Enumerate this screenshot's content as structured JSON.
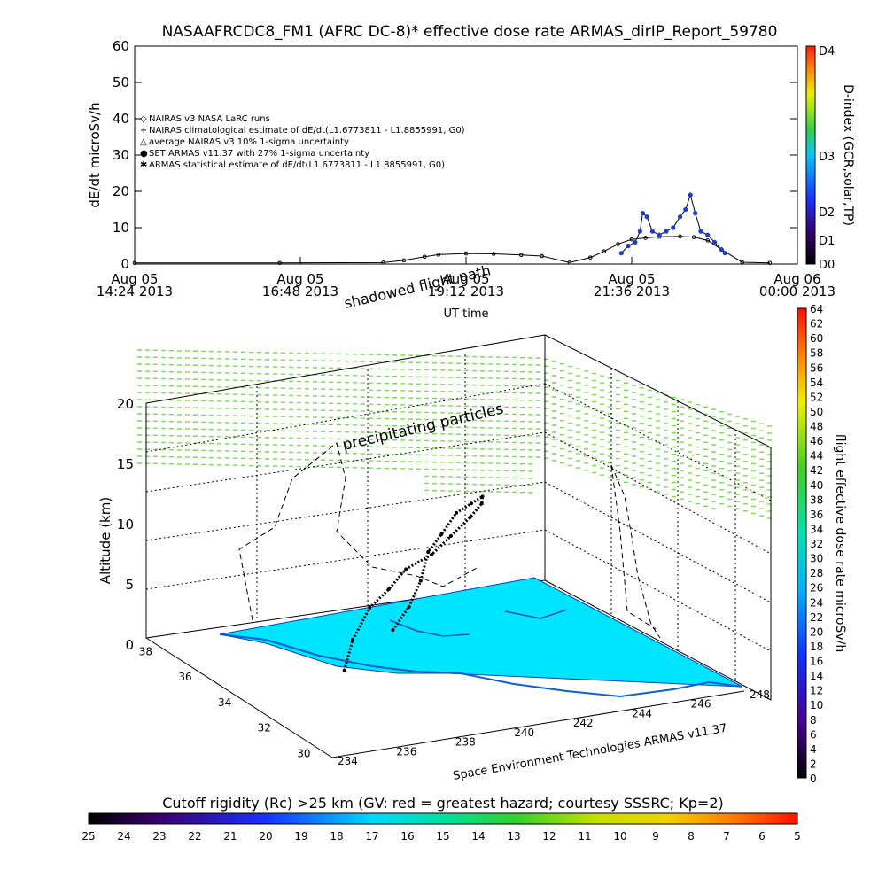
{
  "chart_data": [
    {
      "type": "scatter",
      "title": "NASAAFRCDC8_FM1 (AFRC DC-8)* effective dose rate ARMAS_dirIP_Report_59780",
      "ylabel": "dE/dt microSv/h",
      "xlabel": "UT time",
      "ylim": [
        0,
        60
      ],
      "yticks": [
        "0",
        "10",
        "20",
        "30",
        "40",
        "50",
        "60"
      ],
      "xticks": [
        {
          "line1": "Aug 05",
          "line2": "14:24 2013"
        },
        {
          "line1": "Aug 05",
          "line2": "16:48 2013"
        },
        {
          "line1": "Aug 05",
          "line2": "19:12 2013"
        },
        {
          "line1": "Aug 05",
          "line2": "21:36 2013"
        },
        {
          "line1": "Aug 06",
          "line2": "00:00 2013"
        }
      ],
      "xlim_hours": [
        14.4,
        24.0
      ],
      "legend": [
        {
          "symbol": "◇",
          "label": "NAIRAS v3 NASA LaRC runs"
        },
        {
          "symbol": "+",
          "label": "NAIRAS climatological estimate of dE/dt(L1.6773811 - L1.8855991, G0)"
        },
        {
          "symbol": "△",
          "label": "average NAIRAS v3 10% 1-sigma uncertainty"
        },
        {
          "symbol": "●",
          "label": "SET ARMAS v11.37 with 27% 1-sigma uncertainty",
          "color": "#1f3fbf"
        },
        {
          "symbol": "✱",
          "label": "ARMAS statistical estimate of dE/dt(L1.6773811 - L1.8855991, G0)"
        }
      ],
      "nairas_series": [
        [
          14.4,
          0.3
        ],
        [
          16.5,
          0.3
        ],
        [
          18.0,
          0.4
        ],
        [
          18.3,
          1.0
        ],
        [
          18.6,
          2.0
        ],
        [
          18.8,
          2.6
        ],
        [
          19.2,
          2.9
        ],
        [
          19.6,
          2.8
        ],
        [
          20.0,
          2.5
        ],
        [
          20.3,
          2.2
        ],
        [
          20.7,
          0.4
        ],
        [
          21.0,
          1.8
        ],
        [
          21.2,
          3.5
        ],
        [
          21.4,
          5.5
        ],
        [
          21.6,
          6.8
        ],
        [
          21.8,
          7.2
        ],
        [
          22.0,
          7.5
        ],
        [
          22.3,
          7.6
        ],
        [
          22.5,
          7.4
        ],
        [
          22.7,
          6.5
        ],
        [
          22.9,
          4.0
        ],
        [
          23.2,
          0.5
        ],
        [
          23.6,
          0.3
        ]
      ],
      "armas_series": [
        [
          21.45,
          3
        ],
        [
          21.55,
          5
        ],
        [
          21.65,
          6
        ],
        [
          21.72,
          9
        ],
        [
          21.76,
          14
        ],
        [
          21.82,
          13
        ],
        [
          21.9,
          9
        ],
        [
          22.0,
          8
        ],
        [
          22.1,
          9
        ],
        [
          22.2,
          10
        ],
        [
          22.3,
          13
        ],
        [
          22.38,
          15
        ],
        [
          22.45,
          19
        ],
        [
          22.52,
          14
        ],
        [
          22.6,
          9
        ],
        [
          22.7,
          8
        ],
        [
          22.8,
          6
        ],
        [
          22.9,
          4
        ],
        [
          22.95,
          3
        ]
      ],
      "d_index_colorbar": {
        "label": "D-index (GCR,solar,TP)",
        "ticks": [
          "D4",
          "D3",
          "D2",
          "D1",
          "D0"
        ]
      }
    },
    {
      "type": "scatter3d",
      "zlabel": "Altitude (km)",
      "zticks": [
        "0",
        "5",
        "10",
        "15",
        "20"
      ],
      "lat_ticks": [
        "30",
        "32",
        "34",
        "36",
        "38"
      ],
      "lon_ticks": [
        "234",
        "236",
        "238",
        "240",
        "242",
        "244",
        "246",
        "248"
      ],
      "annotations": [
        "shadowed flight path",
        "precipitating particles"
      ],
      "credit": "Space Environment Technologies ARMAS v11.37",
      "flight_track": [
        [
          237.5,
          34.2,
          1
        ],
        [
          238.0,
          34.5,
          3
        ],
        [
          238.8,
          34.8,
          5
        ],
        [
          239.6,
          35.0,
          6
        ],
        [
          240.4,
          35.3,
          7
        ],
        [
          241.2,
          35.2,
          8
        ],
        [
          242.0,
          35.4,
          9
        ],
        [
          242.8,
          35.6,
          10
        ],
        [
          243.2,
          35.6,
          11
        ],
        [
          243.0,
          35.3,
          12
        ],
        [
          242.4,
          35.0,
          12
        ],
        [
          241.6,
          34.6,
          12
        ],
        [
          240.8,
          34.2,
          11
        ],
        [
          240.2,
          34.0,
          10
        ],
        [
          239.8,
          33.8,
          8
        ],
        [
          239.4,
          33.8,
          6
        ],
        [
          239.0,
          34.0,
          4
        ]
      ],
      "dose_colorbar": {
        "label": "flight effective dose rate microSv/h",
        "ticks": [
          "0",
          "2",
          "4",
          "6",
          "8",
          "10",
          "12",
          "14",
          "16",
          "18",
          "20",
          "22",
          "24",
          "26",
          "28",
          "30",
          "32",
          "34",
          "36",
          "38",
          "40",
          "42",
          "44",
          "46",
          "48",
          "50",
          "52",
          "54",
          "56",
          "58",
          "60",
          "62",
          "64"
        ]
      }
    },
    {
      "type": "colorbar",
      "title": "Cutoff rigidity (Rc) >25 km (GV: red = greatest hazard; courtesy SSSRC; Kp=2)",
      "ticks": [
        "25",
        "24",
        "23",
        "22",
        "21",
        "20",
        "19",
        "18",
        "17",
        "16",
        "15",
        "14",
        "13",
        "12",
        "11",
        "10",
        "9",
        "8",
        "7",
        "6",
        "5"
      ]
    }
  ],
  "colors": {
    "rigidity_map": "#00e5ff",
    "particles": "#7ed957",
    "track": "#000000",
    "armas": "#1f3fbf"
  }
}
